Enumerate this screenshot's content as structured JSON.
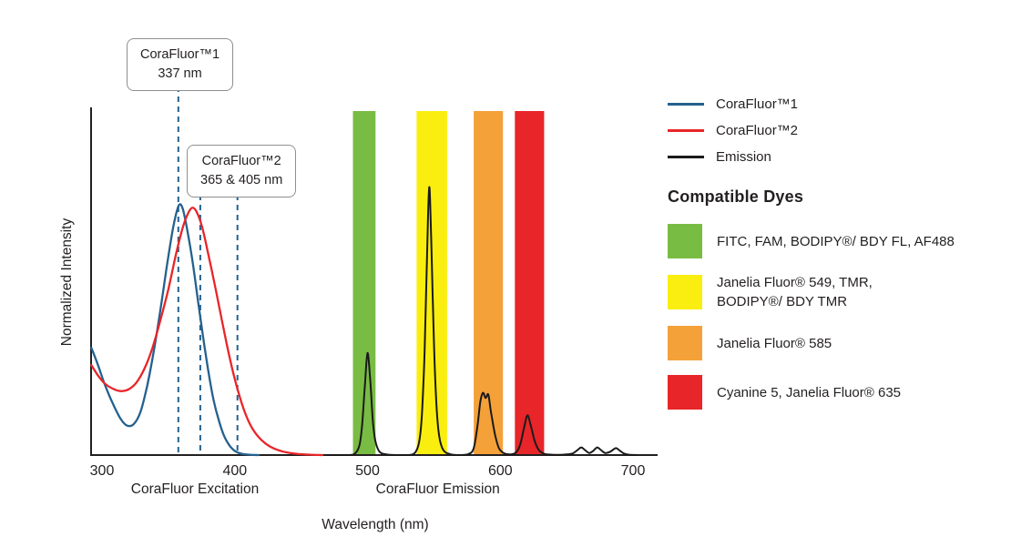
{
  "chart_data": {
    "type": "line",
    "title": "",
    "xlabel": "Wavelength (nm)",
    "ylabel": "Normalized Intensity",
    "xlim": [
      292,
      705
    ],
    "ylim": [
      0,
      1
    ],
    "grid": false,
    "x_ticks": [
      300,
      400,
      500,
      600,
      700
    ],
    "axis_section_labels": [
      {
        "text": "CoraFluor Excitation",
        "center_nm": 370
      },
      {
        "text": "CoraFluor Emission",
        "center_nm": 553
      }
    ],
    "marker_color": "#24618E",
    "annotations": [
      {
        "title": "CoraFluor™1",
        "value": "337 nm",
        "marker_nm": [
          357.5
        ]
      },
      {
        "title": "CoraFluor™2",
        "value": "365 & 405 nm",
        "marker_nm": [
          374,
          402
        ]
      }
    ],
    "emission_bands": [
      {
        "key": "band-fitc-fam-af488",
        "color": "#79BC43",
        "from_nm": 489,
        "to_nm": 506
      },
      {
        "key": "band-jf549-tmr",
        "color": "#FAEE10",
        "from_nm": 537,
        "to_nm": 560
      },
      {
        "key": "band-jf585",
        "color": "#F4A13A",
        "from_nm": 580,
        "to_nm": 602
      },
      {
        "key": "band-cy5-jf635",
        "color": "#E82529",
        "from_nm": 611,
        "to_nm": 633
      }
    ],
    "series": [
      {
        "key": "corafluor1-excitation",
        "name": "CoraFluor™1",
        "color": "#24618E",
        "points": [
          [
            292,
            0.31
          ],
          [
            297,
            0.26
          ],
          [
            302,
            0.205
          ],
          [
            308,
            0.15
          ],
          [
            314,
            0.105
          ],
          [
            319,
            0.085
          ],
          [
            324,
            0.09
          ],
          [
            329,
            0.125
          ],
          [
            334,
            0.2
          ],
          [
            339,
            0.3
          ],
          [
            344,
            0.42
          ],
          [
            349,
            0.55
          ],
          [
            353,
            0.645
          ],
          [
            356,
            0.7
          ],
          [
            358.5,
            0.725
          ],
          [
            361,
            0.71
          ],
          [
            364,
            0.655
          ],
          [
            368,
            0.565
          ],
          [
            372,
            0.455
          ],
          [
            376,
            0.345
          ],
          [
            380,
            0.245
          ],
          [
            384,
            0.16
          ],
          [
            388,
            0.1
          ],
          [
            392,
            0.055
          ],
          [
            396,
            0.028
          ],
          [
            400,
            0.012
          ],
          [
            405,
            0.004
          ],
          [
            411,
            0.001
          ],
          [
            418,
            0
          ]
        ]
      },
      {
        "key": "corafluor2-excitation",
        "name": "CoraFluor™2",
        "color": "#E82529",
        "points": [
          [
            292,
            0.26
          ],
          [
            297,
            0.23
          ],
          [
            302,
            0.207
          ],
          [
            308,
            0.192
          ],
          [
            314,
            0.185
          ],
          [
            320,
            0.19
          ],
          [
            326,
            0.21
          ],
          [
            332,
            0.25
          ],
          [
            338,
            0.31
          ],
          [
            344,
            0.39
          ],
          [
            350,
            0.48
          ],
          [
            356,
            0.585
          ],
          [
            361,
            0.66
          ],
          [
            365,
            0.7
          ],
          [
            368,
            0.715
          ],
          [
            371,
            0.705
          ],
          [
            375,
            0.665
          ],
          [
            379,
            0.6
          ],
          [
            384,
            0.51
          ],
          [
            389,
            0.415
          ],
          [
            394,
            0.32
          ],
          [
            399,
            0.235
          ],
          [
            404,
            0.165
          ],
          [
            409,
            0.11
          ],
          [
            414,
            0.072
          ],
          [
            420,
            0.044
          ],
          [
            426,
            0.026
          ],
          [
            433,
            0.014
          ],
          [
            440,
            0.007
          ],
          [
            448,
            0.003
          ],
          [
            457,
            0.001
          ],
          [
            466,
            0
          ]
        ]
      },
      {
        "key": "emission",
        "name": "Emission",
        "color": "#1A1A1A",
        "points": [
          [
            470,
            0
          ],
          [
            486,
            0
          ],
          [
            491,
            0.006
          ],
          [
            494,
            0.03
          ],
          [
            496,
            0.09
          ],
          [
            498,
            0.2
          ],
          [
            500,
            0.295
          ],
          [
            502,
            0.22
          ],
          [
            504,
            0.1
          ],
          [
            506,
            0.04
          ],
          [
            509,
            0.01
          ],
          [
            514,
            0.002
          ],
          [
            522,
            0
          ],
          [
            531,
            0
          ],
          [
            536,
            0.008
          ],
          [
            539,
            0.04
          ],
          [
            541,
            0.12
          ],
          [
            543,
            0.3
          ],
          [
            545,
            0.6
          ],
          [
            546.5,
            0.775
          ],
          [
            548,
            0.62
          ],
          [
            550,
            0.33
          ],
          [
            552,
            0.14
          ],
          [
            554,
            0.055
          ],
          [
            557,
            0.015
          ],
          [
            562,
            0.003
          ],
          [
            569,
            0
          ],
          [
            576,
            0.003
          ],
          [
            580,
            0.02
          ],
          [
            583,
            0.09
          ],
          [
            585,
            0.155
          ],
          [
            587,
            0.18
          ],
          [
            589,
            0.165
          ],
          [
            591,
            0.175
          ],
          [
            593,
            0.125
          ],
          [
            596,
            0.06
          ],
          [
            599,
            0.02
          ],
          [
            603,
            0.005
          ],
          [
            608,
            0.002
          ],
          [
            612,
            0.008
          ],
          [
            615,
            0.03
          ],
          [
            618,
            0.08
          ],
          [
            620.5,
            0.115
          ],
          [
            623,
            0.085
          ],
          [
            626,
            0.04
          ],
          [
            629,
            0.015
          ],
          [
            633,
            0.004
          ],
          [
            639,
            0.001
          ],
          [
            647,
            0.001
          ],
          [
            654,
            0.004
          ],
          [
            658,
            0.014
          ],
          [
            661,
            0.022
          ],
          [
            664,
            0.014
          ],
          [
            667,
            0.006
          ],
          [
            670,
            0.012
          ],
          [
            673,
            0.022
          ],
          [
            676,
            0.014
          ],
          [
            679,
            0.006
          ],
          [
            683,
            0.01
          ],
          [
            687,
            0.02
          ],
          [
            690,
            0.013
          ],
          [
            693,
            0.005
          ],
          [
            697,
            0.001
          ],
          [
            703,
            0
          ]
        ]
      }
    ]
  },
  "legend": {
    "items": [
      {
        "label": "CoraFluor™1",
        "color": "#24618E"
      },
      {
        "label": "CoraFluor™2",
        "color": "#E82529"
      },
      {
        "label": "Emission",
        "color": "#1A1A1A"
      }
    ]
  },
  "side_panel": {
    "title": "Compatible Dyes",
    "dyes": [
      {
        "label": "FITC, FAM, BODIPY®/ BDY FL, AF488",
        "color": "#79BC43"
      },
      {
        "label": "Janelia Fluor® 549, TMR,\nBODIPY®/ BDY TMR",
        "color": "#FAEE10"
      },
      {
        "label": "Janelia Fluor® 585",
        "color": "#F4A13A"
      },
      {
        "label": "Cyanine 5, Janelia Fluor® 635",
        "color": "#E82529"
      }
    ]
  }
}
